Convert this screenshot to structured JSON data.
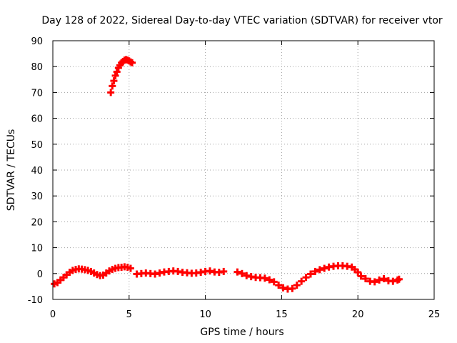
{
  "chart_data": {
    "type": "scatter",
    "title": "Day 128 of 2022, Sidereal Day-to-day VTEC variation (SDTVAR) for receiver vtor",
    "xlabel": "GPS time / hours",
    "ylabel": "SDTVAR / TECUs",
    "xlim": [
      0,
      25
    ],
    "ylim": [
      -10,
      90
    ],
    "x_ticks": [
      0,
      5,
      10,
      15,
      20,
      25
    ],
    "y_ticks": [
      -10,
      0,
      10,
      20,
      30,
      40,
      50,
      60,
      70,
      80,
      90
    ],
    "grid": true,
    "marker": "plus",
    "series": [
      {
        "name": "SDTVAR",
        "color": "#ff0000",
        "x": [
          3.8,
          3.9,
          4.0,
          4.1,
          4.2,
          4.3,
          4.4,
          4.5,
          4.6,
          4.7,
          4.8,
          4.9,
          5.0,
          5.1,
          5.2,
          0.1,
          0.3,
          0.5,
          0.7,
          0.9,
          1.1,
          1.3,
          1.5,
          1.7,
          1.9,
          2.1,
          2.3,
          2.5,
          2.7,
          2.9,
          3.1,
          3.3,
          3.5,
          3.7,
          3.9,
          4.1,
          4.3,
          4.5,
          4.7,
          4.9,
          5.1,
          5.5,
          5.8,
          6.1,
          6.4,
          6.7,
          7.0,
          7.3,
          7.6,
          7.9,
          8.2,
          8.5,
          8.8,
          9.1,
          9.4,
          9.7,
          10.0,
          10.3,
          10.6,
          10.9,
          11.2,
          12.1,
          12.4,
          12.7,
          13.0,
          13.3,
          13.6,
          13.9,
          14.2,
          14.5,
          14.8,
          15.1,
          15.4,
          15.7,
          16.0,
          16.3,
          16.6,
          16.9,
          17.2,
          17.5,
          17.8,
          18.1,
          18.4,
          18.7,
          19.0,
          19.3,
          19.6,
          19.8,
          20.0,
          20.2,
          20.5,
          20.8,
          21.1,
          21.4,
          21.7,
          22.0,
          22.3,
          22.6,
          22.7
        ],
        "y": [
          70,
          72.5,
          74.5,
          76.5,
          78,
          79.5,
          80.5,
          81.5,
          82,
          82.5,
          82.7,
          82.5,
          82.2,
          81.8,
          81.5,
          -4,
          -3.5,
          -2.5,
          -1.5,
          -0.5,
          0.5,
          1.2,
          1.6,
          1.8,
          1.7,
          1.5,
          1.2,
          0.8,
          0.2,
          -0.4,
          -0.8,
          -0.6,
          0.2,
          1.0,
          1.6,
          2.0,
          2.3,
          2.4,
          2.6,
          2.4,
          2.0,
          -0.2,
          0.0,
          0.2,
          0.0,
          -0.2,
          0.2,
          0.6,
          0.8,
          1.0,
          0.8,
          0.5,
          0.3,
          0.1,
          0.2,
          0.5,
          0.8,
          1.0,
          0.6,
          0.5,
          0.8,
          0.6,
          0.0,
          -0.8,
          -1.2,
          -1.5,
          -1.6,
          -1.8,
          -2.4,
          -3.2,
          -4.5,
          -5.5,
          -6.0,
          -5.8,
          -4.5,
          -3.0,
          -1.5,
          -0.2,
          0.8,
          1.5,
          2.0,
          2.5,
          2.8,
          3.0,
          3.0,
          2.8,
          2.5,
          1.6,
          0.5,
          -1.0,
          -2.0,
          -3.0,
          -3.2,
          -2.5,
          -2.0,
          -2.8,
          -3.0,
          -2.5,
          -2.2
        ]
      }
    ]
  }
}
